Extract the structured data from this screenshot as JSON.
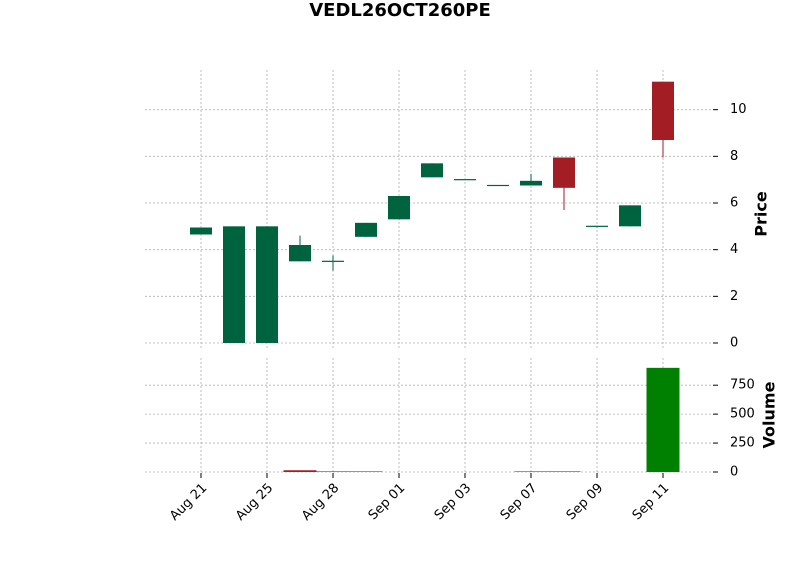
{
  "chart_data": {
    "type": "candlestick",
    "title": "VEDL26OCT260PE",
    "categories": [
      "Aug 21",
      null,
      "Aug 25",
      null,
      "Aug 28",
      null,
      "Sep 01",
      null,
      "Sep 03",
      null,
      "Sep 07",
      null,
      "Sep 09",
      null,
      "Sep 11"
    ],
    "open": [
      4.65,
      0,
      0,
      3.5,
      3.5,
      4.55,
      5.3,
      7.1,
      7.0,
      6.75,
      6.75,
      7.95,
      4.95,
      5.0,
      11.2
    ],
    "high": [
      4.95,
      5.0,
      5.0,
      4.6,
      3.75,
      5.15,
      6.3,
      7.7,
      7.0,
      6.75,
      7.25,
      7.95,
      5.0,
      5.9,
      11.2
    ],
    "low": [
      4.65,
      0,
      0,
      3.5,
      3.1,
      4.55,
      5.3,
      7.1,
      7.0,
      6.75,
      6.75,
      5.7,
      4.95,
      5.0,
      7.95
    ],
    "close": [
      4.95,
      5.0,
      5.0,
      4.2,
      3.5,
      5.15,
      6.3,
      7.7,
      7.0,
      6.75,
      6.95,
      6.65,
      5.0,
      5.9,
      8.7
    ],
    "volume": [
      0,
      0,
      0,
      15,
      5,
      5,
      0,
      0,
      0,
      0,
      5,
      5,
      0,
      0,
      900
    ],
    "up_color": "#006340",
    "down_color": "#a31d24",
    "volume_up_color": "#008000",
    "volume_down_color": "#a31d24",
    "ylabel": "Price",
    "ylim": [
      -0.3,
      11.7
    ],
    "yticks": [
      0,
      2,
      4,
      6,
      8,
      10
    ],
    "volume_label": "Volume",
    "volume_ylim": [
      0,
      985
    ],
    "volume_yticks": [
      0,
      250,
      500,
      750
    ],
    "grid": true
  }
}
